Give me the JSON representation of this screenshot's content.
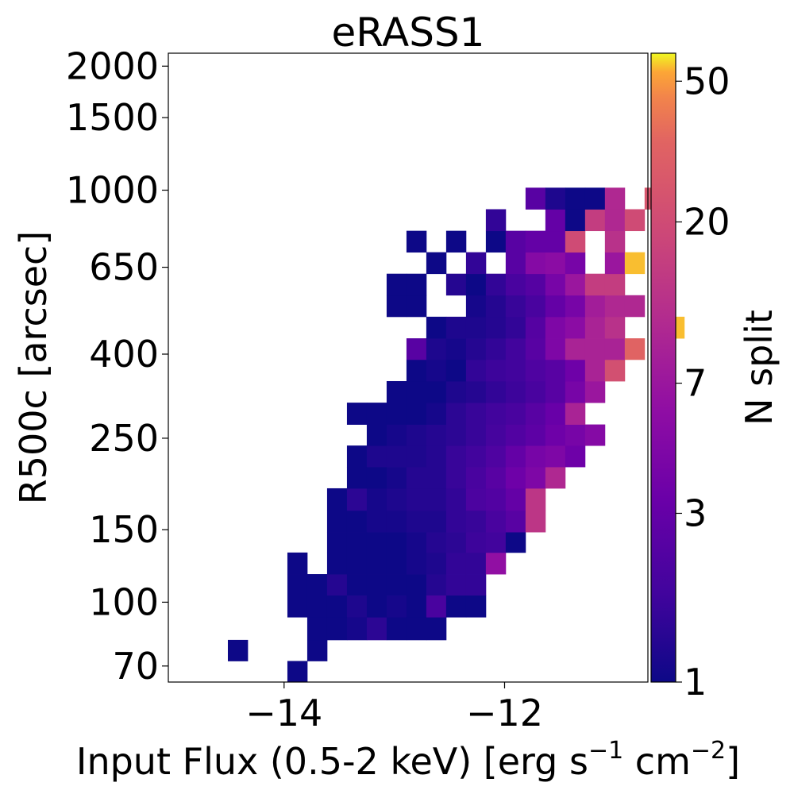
{
  "chart_data": {
    "type": "heatmap",
    "title": "eRASS1",
    "xlabel": "Input Flux (0.5-2 keV) [erg s",
    "xlabel_unit_1": "cm",
    "xlabel_sup": "−1",
    "xlabel_sup2": "−2",
    "xlabel_end": "]",
    "ylabel": "R500c [arcsec]",
    "colorbar_label": "N split",
    "xlim": [
      -15.05,
      -10.7
    ],
    "ylim_log": [
      64,
      2150
    ],
    "y_scale": "log",
    "color_scale": "log",
    "color_range": [
      1,
      60
    ],
    "colormap": "plasma",
    "x_ticks": [
      {
        "v": -14,
        "label": "−14"
      },
      {
        "v": -12,
        "label": "−12"
      }
    ],
    "y_ticks": [
      {
        "v": 70,
        "label": "70"
      },
      {
        "v": 100,
        "label": "100"
      },
      {
        "v": 150,
        "label": "150"
      },
      {
        "v": 250,
        "label": "250"
      },
      {
        "v": 400,
        "label": "400"
      },
      {
        "v": 650,
        "label": "650"
      },
      {
        "v": 1000,
        "label": "1000"
      },
      {
        "v": 1500,
        "label": "1500"
      },
      {
        "v": 2000,
        "label": "2000"
      }
    ],
    "colorbar_ticks": [
      {
        "v": 1,
        "label": "1"
      },
      {
        "v": 3,
        "label": "3"
      },
      {
        "v": 7,
        "label": "7"
      },
      {
        "v": 20,
        "label": "20"
      },
      {
        "v": 50,
        "label": "50"
      }
    ],
    "x_bin_start": -15.05,
    "x_bin_width": 0.18,
    "y_bin_edges": [
      64,
      72,
      81,
      92,
      104,
      117,
      132,
      148,
      167,
      189,
      213,
      240,
      270,
      305,
      344,
      388,
      437,
      493,
      556,
      627,
      707,
      797,
      899,
      1014,
      1143,
      1289,
      1453,
      1639,
      1848,
      2150
    ],
    "rows": [
      [
        [
          6,
          1.0
        ]
      ],
      [
        [
          3,
          1.0
        ],
        [
          7,
          1.0
        ]
      ],
      [
        [
          7,
          1.0
        ],
        [
          8,
          1.0
        ],
        [
          9,
          1.1
        ],
        [
          10,
          1.4
        ],
        [
          11,
          1.0
        ],
        [
          12,
          1.0
        ],
        [
          13,
          1.0
        ]
      ],
      [
        [
          6,
          1.0
        ],
        [
          7,
          1.0
        ],
        [
          8,
          1.0
        ],
        [
          9,
          1.2
        ],
        [
          10,
          1.0
        ],
        [
          11,
          1.1
        ],
        [
          12,
          1.0
        ],
        [
          13,
          2.0
        ],
        [
          14,
          1.0
        ],
        [
          15,
          1.0
        ]
      ],
      [
        [
          6,
          1.0
        ],
        [
          7,
          1.0
        ],
        [
          8,
          1.3
        ],
        [
          9,
          1.0
        ],
        [
          10,
          1.0
        ],
        [
          11,
          1.0
        ],
        [
          12,
          1.0
        ],
        [
          13,
          1.3
        ],
        [
          14,
          1.5
        ],
        [
          15,
          1.5
        ]
      ],
      [
        [
          6,
          1.0
        ],
        [
          8,
          1.0
        ],
        [
          9,
          1.0
        ],
        [
          10,
          1.0
        ],
        [
          11,
          1.0
        ],
        [
          12,
          1.1
        ],
        [
          13,
          1.2
        ],
        [
          14,
          1.5
        ],
        [
          15,
          1.5
        ],
        [
          16,
          6.0
        ]
      ],
      [
        [
          8,
          1.0
        ],
        [
          9,
          1.0
        ],
        [
          10,
          1.0
        ],
        [
          11,
          1.0
        ],
        [
          12,
          1.1
        ],
        [
          13,
          1.3
        ],
        [
          14,
          1.4
        ],
        [
          15,
          1.7
        ],
        [
          16,
          1.8
        ],
        [
          17,
          1.0
        ]
      ],
      [
        [
          8,
          1.0
        ],
        [
          9,
          1.0
        ],
        [
          10,
          1.1
        ],
        [
          11,
          1.1
        ],
        [
          12,
          1.2
        ],
        [
          13,
          1.2
        ],
        [
          14,
          1.5
        ],
        [
          15,
          1.6
        ],
        [
          16,
          2.0
        ],
        [
          17,
          2.5
        ],
        [
          18,
          13.0
        ]
      ],
      [
        [
          8,
          1.0
        ],
        [
          9,
          1.4
        ],
        [
          10,
          1.1
        ],
        [
          11,
          1.2
        ],
        [
          12,
          1.3
        ],
        [
          13,
          1.3
        ],
        [
          14,
          1.5
        ],
        [
          15,
          2.1
        ],
        [
          16,
          2.3
        ],
        [
          17,
          3.0
        ],
        [
          18,
          13.0
        ]
      ],
      [
        [
          9,
          1.0
        ],
        [
          10,
          1.0
        ],
        [
          11,
          1.1
        ],
        [
          12,
          1.3
        ],
        [
          13,
          1.3
        ],
        [
          14,
          1.6
        ],
        [
          15,
          2.0
        ],
        [
          16,
          2.5
        ],
        [
          17,
          3.5
        ],
        [
          18,
          4.5
        ],
        [
          19,
          10.0
        ]
      ],
      [
        [
          9,
          1.0
        ],
        [
          10,
          1.2
        ],
        [
          11,
          1.2
        ],
        [
          12,
          1.2
        ],
        [
          13,
          1.3
        ],
        [
          14,
          1.6
        ],
        [
          15,
          1.8
        ],
        [
          16,
          2.2
        ],
        [
          17,
          3.0
        ],
        [
          18,
          4.0
        ],
        [
          19,
          4.5
        ],
        [
          20,
          3.5
        ]
      ],
      [
        [
          10,
          1.0
        ],
        [
          11,
          1.1
        ],
        [
          12,
          1.2
        ],
        [
          13,
          1.3
        ],
        [
          14,
          1.4
        ],
        [
          15,
          1.6
        ],
        [
          16,
          1.9
        ],
        [
          17,
          2.3
        ],
        [
          18,
          2.7
        ],
        [
          19,
          3.5
        ],
        [
          20,
          4.0
        ],
        [
          21,
          5.0
        ]
      ],
      [
        [
          9,
          1.0
        ],
        [
          10,
          1.0
        ],
        [
          11,
          1.0
        ],
        [
          12,
          1.0
        ],
        [
          13,
          1.1
        ],
        [
          14,
          1.4
        ],
        [
          15,
          1.6
        ],
        [
          16,
          1.8
        ],
        [
          17,
          2.0
        ],
        [
          18,
          2.5
        ],
        [
          19,
          3.2
        ],
        [
          20,
          9.0
        ]
      ],
      [
        [
          11,
          1.0
        ],
        [
          12,
          1.0
        ],
        [
          13,
          1.0
        ],
        [
          14,
          1.2
        ],
        [
          15,
          1.3
        ],
        [
          16,
          1.5
        ],
        [
          17,
          1.7
        ],
        [
          18,
          2.0
        ],
        [
          19,
          2.5
        ],
        [
          20,
          4.0
        ],
        [
          21,
          7.0
        ]
      ],
      [
        [
          12,
          1.0
        ],
        [
          13,
          1.1
        ],
        [
          14,
          1.0
        ],
        [
          15,
          1.5
        ],
        [
          16,
          1.7
        ],
        [
          17,
          1.8
        ],
        [
          18,
          2.2
        ],
        [
          19,
          2.5
        ],
        [
          20,
          3.5
        ],
        [
          21,
          9.0
        ],
        [
          22,
          22.0
        ]
      ],
      [
        [
          12,
          2.5
        ],
        [
          13,
          1.2
        ],
        [
          14,
          1.1
        ],
        [
          15,
          1.3
        ],
        [
          16,
          1.5
        ],
        [
          17,
          1.8
        ],
        [
          18,
          2.5
        ],
        [
          19,
          4.5
        ],
        [
          20,
          9.0
        ],
        [
          21,
          9.0
        ],
        [
          22,
          9.0
        ],
        [
          23,
          33.0
        ]
      ],
      [
        [
          13,
          1.0
        ],
        [
          14,
          1.2
        ],
        [
          15,
          1.2
        ],
        [
          16,
          1.3
        ],
        [
          17,
          1.5
        ],
        [
          18,
          2.4
        ],
        [
          19,
          4.5
        ],
        [
          20,
          5.5
        ],
        [
          21,
          9.0
        ],
        [
          22,
          12.0
        ],
        [
          25,
          55.0
        ]
      ],
      [
        [
          11,
          1.0
        ],
        [
          12,
          1.0
        ],
        [
          15,
          1.1
        ],
        [
          16,
          1.3
        ],
        [
          17,
          1.6
        ],
        [
          18,
          2.0
        ],
        [
          19,
          3.0
        ],
        [
          20,
          4.0
        ],
        [
          21,
          8.0
        ],
        [
          22,
          10.0
        ],
        [
          23,
          10.0
        ]
      ],
      [
        [
          11,
          1.0
        ],
        [
          12,
          1.0
        ],
        [
          14,
          1.3
        ],
        [
          15,
          1.0
        ],
        [
          16,
          1.5
        ],
        [
          17,
          2.0
        ],
        [
          18,
          2.4
        ],
        [
          19,
          4.0
        ],
        [
          20,
          7.0
        ],
        [
          21,
          15.0
        ],
        [
          22,
          15.0
        ]
      ],
      [
        [
          13,
          1.0
        ],
        [
          15,
          1.5
        ],
        [
          17,
          2.5
        ],
        [
          18,
          5.0
        ],
        [
          19,
          5.5
        ],
        [
          20,
          4.0
        ],
        [
          22,
          7.0
        ],
        [
          23,
          55.0
        ]
      ],
      [
        [
          12,
          1.0
        ],
        [
          14,
          1.0
        ],
        [
          16,
          1.0
        ],
        [
          17,
          2.5
        ],
        [
          18,
          3.0
        ],
        [
          19,
          3.0
        ],
        [
          20,
          20.0
        ],
        [
          22,
          12.0
        ]
      ],
      [
        [
          16,
          1.5
        ],
        [
          19,
          3.0
        ],
        [
          20,
          1.0
        ],
        [
          21,
          15.0
        ],
        [
          22,
          10.0
        ],
        [
          23,
          20.0
        ]
      ],
      [
        [
          18,
          2.5
        ],
        [
          19,
          1.2
        ],
        [
          20,
          1.0
        ],
        [
          21,
          1.0
        ],
        [
          22,
          10.0
        ],
        [
          24,
          25.0
        ]
      ]
    ],
    "row_start_index": 6
  }
}
